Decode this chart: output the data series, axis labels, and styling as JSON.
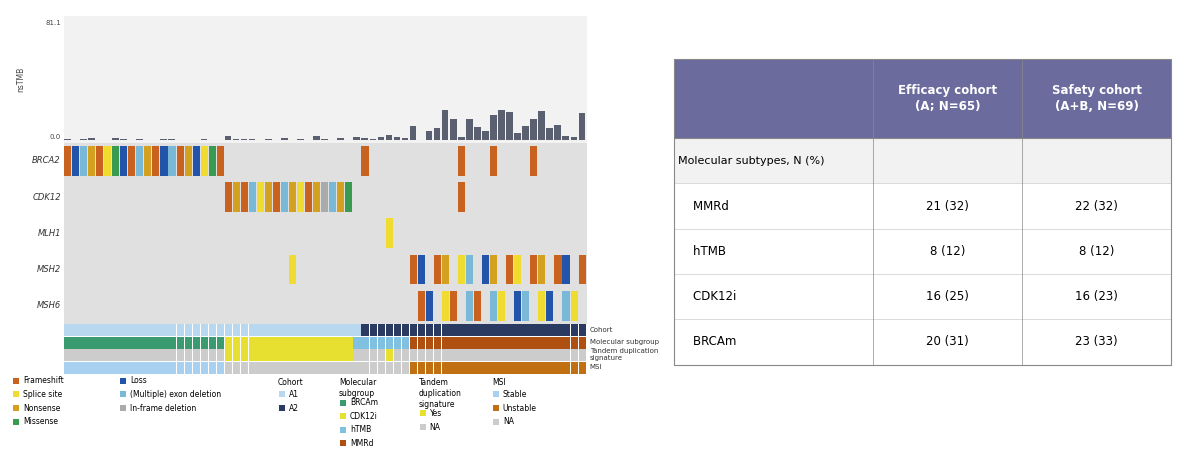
{
  "table": {
    "header_bg": "#6b6b9e",
    "header_text_color": "white",
    "col2_header": "Efficacy cohort\n(A; N=65)",
    "col3_header": "Safety cohort\n(A+B, N=69)",
    "rows": [
      [
        "Molecular subtypes, N (%)",
        "",
        ""
      ],
      [
        "    MMRd",
        "21 (32)",
        "22 (32)"
      ],
      [
        "    hTMB",
        "8 (12)",
        "8 (12)"
      ],
      [
        "    CDK12i",
        "16 (25)",
        "16 (23)"
      ],
      [
        "    BRCAm",
        "20 (31)",
        "23 (33)"
      ]
    ]
  },
  "gene_labels": [
    "BRCA2",
    "CDK12",
    "MLH1",
    "MSH2",
    "MSH6"
  ],
  "ytmb_label": "nsTMB",
  "ytmb_max": "81.1",
  "ytmb_min": "0.0",
  "n_patients": 65,
  "bar_color_tmb": "#5a6070",
  "side_labels": [
    "Cohort",
    "Molecular subgroup",
    "Tandem duplication\nsignature",
    "MSI"
  ],
  "mut_colors": {
    "frameshift": "#c8621e",
    "splice": "#f0dc30",
    "nonsense": "#d4a020",
    "missense": "#3a9a50",
    "loss": "#2255aa",
    "exon_del": "#7ab8d8",
    "inframe": "#aaaaaa"
  },
  "cohort_colors": [
    "#b8d8f0",
    "#2a3a60"
  ],
  "mol_colors": {
    "brca": "#3a9a70",
    "cdk12": "#e8e030",
    "htmb": "#80c0e0",
    "mmrd": "#b05010"
  },
  "tandem_colors": {
    "yes": "#e8e030",
    "na": "#cccccc"
  },
  "msi_colors": {
    "stable": "#a8d0f0",
    "unstable": "#c07010",
    "na": "#cccccc"
  },
  "legend_groups": {
    "mutation": [
      {
        "label": "Frameshift",
        "color": "#c8621e"
      },
      {
        "label": "Splice site",
        "color": "#f0dc30"
      },
      {
        "label": "Nonsense",
        "color": "#d4a020"
      },
      {
        "label": "Missense",
        "color": "#3a9a50"
      }
    ],
    "cna": [
      {
        "label": "Loss",
        "color": "#2255aa"
      },
      {
        "label": "(Multiple) exon deletion",
        "color": "#7ab8d8"
      },
      {
        "label": "In-frame deletion",
        "color": "#aaaaaa"
      }
    ],
    "cohort": [
      {
        "label": "A1",
        "color": "#b8d8f0"
      },
      {
        "label": "A2",
        "color": "#2a3a60"
      }
    ],
    "mol": [
      {
        "label": "BRCAm",
        "color": "#3a9a70"
      },
      {
        "label": "CDK12i",
        "color": "#e8e030"
      },
      {
        "label": "hTMB",
        "color": "#80c0e0"
      },
      {
        "label": "MMRd",
        "color": "#b05010"
      }
    ],
    "tandem": [
      {
        "label": "Yes",
        "color": "#e8e030"
      },
      {
        "label": "NA",
        "color": "#cccccc"
      }
    ],
    "msi": [
      {
        "label": "Stable",
        "color": "#a8d0f0"
      },
      {
        "label": "Unstable",
        "color": "#c07010"
      },
      {
        "label": "NA",
        "color": "#cccccc"
      }
    ]
  }
}
